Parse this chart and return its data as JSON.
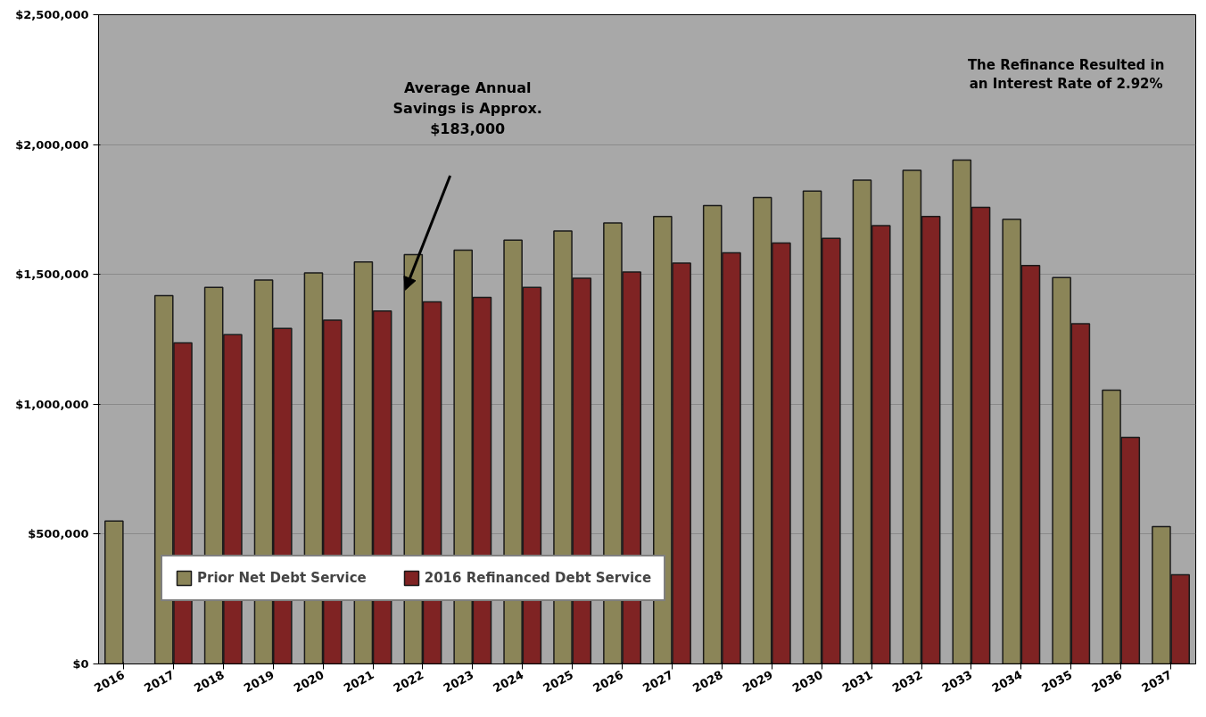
{
  "chart_data": {
    "type": "bar",
    "categories": [
      "2016",
      "2017",
      "2018",
      "2019",
      "2020",
      "2021",
      "2022",
      "2023",
      "2024",
      "2025",
      "2026",
      "2027",
      "2028",
      "2029",
      "2030",
      "2031",
      "2032",
      "2033",
      "2034",
      "2035",
      "2036",
      "2037"
    ],
    "series": [
      {
        "name": "Prior Net Debt Service",
        "color": "#8b8558",
        "values": [
          550000,
          1418000,
          1450000,
          1478000,
          1506000,
          1548000,
          1576000,
          1593000,
          1632000,
          1667000,
          1698000,
          1723000,
          1765000,
          1796000,
          1821000,
          1863000,
          1901000,
          1940000,
          1712000,
          1488000,
          1054000,
          529000
        ]
      },
      {
        "name": "2016 Refinanced Debt Service",
        "color": "#7f2323",
        "values": [
          null,
          1236000,
          1268000,
          1292000,
          1324000,
          1359000,
          1394000,
          1411000,
          1450000,
          1485000,
          1509000,
          1544000,
          1583000,
          1621000,
          1639000,
          1688000,
          1723000,
          1758000,
          1534000,
          1310000,
          872000,
          343000
        ]
      }
    ],
    "ylim": [
      0,
      2500000
    ],
    "yticks": [
      {
        "value": 0,
        "label": "$0"
      },
      {
        "value": 500000,
        "label": "$500,000"
      },
      {
        "value": 1000000,
        "label": "$1,000,000"
      },
      {
        "value": 1500000,
        "label": "$1,500,000"
      },
      {
        "value": 2000000,
        "label": "$2,000,000"
      },
      {
        "value": 2500000,
        "label": "$2,500,000"
      }
    ],
    "grid": "y",
    "legend": "bottom left",
    "annotations": [
      "Average Annual\nSavings is Approx.\n$183,000",
      "The Refinance Resulted in\nan Interest Rate of 2.92%"
    ]
  }
}
